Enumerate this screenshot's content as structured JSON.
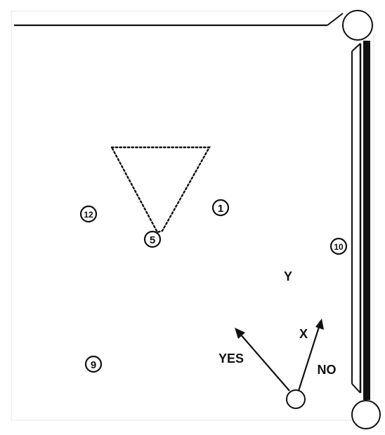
{
  "balls": [
    {
      "id": "ball-1",
      "label": "1"
    },
    {
      "id": "ball-5",
      "label": "5"
    },
    {
      "id": "ball-9",
      "label": "9"
    },
    {
      "id": "ball-10",
      "label": "10"
    },
    {
      "id": "ball-12",
      "label": "12"
    }
  ],
  "labels": {
    "y": "Y",
    "x": "X",
    "yes": "YES",
    "no": "NO"
  },
  "colors": {
    "ink": "#111111",
    "paper": "#ffffff"
  }
}
